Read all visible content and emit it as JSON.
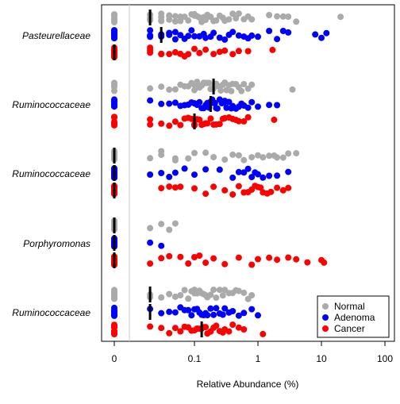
{
  "chart_data": {
    "type": "scatter",
    "xlabel": "Relative Abundance (%)",
    "ylabel": "",
    "x_scale": "log-with-zero",
    "xlim": [
      0,
      100
    ],
    "x_ticks": [
      {
        "value": 0,
        "label": "0"
      },
      {
        "value": 0.1,
        "label": "0.1"
      },
      {
        "value": 1,
        "label": "1"
      },
      {
        "value": 10,
        "label": "10"
      },
      {
        "value": 100,
        "label": "100"
      }
    ],
    "detection_limit": 0.015,
    "taxa": [
      "Pasteurellaceae",
      "Ruminococcaceae",
      "Ruminococcaceae",
      "Porphyromonas",
      "Ruminococcaceae"
    ],
    "legend": {
      "position": "bottom-right",
      "entries": [
        {
          "label": "Normal",
          "color": "#aaaaaa"
        },
        {
          "label": "Adenoma",
          "color": "#0000ff"
        },
        {
          "label": "Cancer",
          "color": "#ff0000"
        }
      ]
    },
    "series": [
      {
        "name": "Normal",
        "color": "#aaaaaa"
      },
      {
        "name": "Adenoma",
        "color": "#0000ff"
      },
      {
        "name": "Cancer",
        "color": "#ff0000"
      }
    ],
    "groups": [
      {
        "taxon": "Pasteurellaceae",
        "Normal": {
          "median": 0.02,
          "zero_points": 14,
          "points": [
            0.02,
            0.02,
            0.02,
            0.02,
            0.03,
            0.03,
            0.03,
            0.03,
            0.04,
            0.04,
            0.04,
            0.05,
            0.05,
            0.06,
            0.06,
            0.07,
            0.08,
            0.09,
            0.1,
            0.1,
            0.11,
            0.12,
            0.13,
            0.14,
            0.15,
            0.16,
            0.18,
            0.2,
            0.22,
            0.25,
            0.28,
            0.3,
            0.35,
            0.4,
            0.45,
            0.5,
            0.6,
            0.7,
            0.8,
            1.5,
            2,
            2.5,
            3,
            4,
            20
          ]
        },
        "Adenoma": {
          "median": 0.03,
          "zero_points": 14,
          "points": [
            0.02,
            0.02,
            0.02,
            0.03,
            0.03,
            0.03,
            0.04,
            0.04,
            0.05,
            0.05,
            0.06,
            0.07,
            0.08,
            0.09,
            0.1,
            0.12,
            0.14,
            0.15,
            0.18,
            0.2,
            0.25,
            0.3,
            0.35,
            0.4,
            0.5,
            0.6,
            0.7,
            0.8,
            1,
            1.5,
            2,
            2.5,
            3,
            8,
            10,
            12
          ]
        },
        "Cancer": {
          "median": 0.0,
          "zero_points": 14,
          "points": [
            0.02,
            0.02,
            0.02,
            0.03,
            0.03,
            0.04,
            0.05,
            0.06,
            0.07,
            0.08,
            0.1,
            0.12,
            0.15,
            0.2,
            0.25,
            0.3,
            0.4,
            0.5,
            0.7,
            1.7
          ]
        }
      },
      {
        "taxon": "Ruminococcaceae",
        "Normal": {
          "median": 0.2,
          "zero_points": 4,
          "points": [
            0.02,
            0.03,
            0.04,
            0.05,
            0.06,
            0.07,
            0.08,
            0.09,
            0.1,
            0.1,
            0.11,
            0.12,
            0.13,
            0.14,
            0.15,
            0.16,
            0.17,
            0.18,
            0.19,
            0.2,
            0.21,
            0.22,
            0.24,
            0.26,
            0.28,
            0.3,
            0.32,
            0.35,
            0.38,
            0.4,
            0.45,
            0.5,
            0.55,
            0.6,
            0.7,
            0.8,
            3.5
          ]
        },
        "Adenoma": {
          "median": 0.18,
          "zero_points": 10,
          "points": [
            0.02,
            0.03,
            0.04,
            0.05,
            0.06,
            0.07,
            0.08,
            0.09,
            0.1,
            0.1,
            0.11,
            0.12,
            0.13,
            0.14,
            0.15,
            0.16,
            0.17,
            0.18,
            0.19,
            0.2,
            0.21,
            0.22,
            0.23,
            0.25,
            0.27,
            0.29,
            0.3,
            0.32,
            0.35,
            0.38,
            0.4,
            0.45,
            0.5,
            0.55,
            0.6,
            0.7,
            0.8,
            1,
            1.5,
            2
          ]
        },
        "Cancer": {
          "median": 0.1,
          "zero_points": 6,
          "points": [
            0.02,
            0.02,
            0.03,
            0.04,
            0.05,
            0.06,
            0.07,
            0.08,
            0.09,
            0.1,
            0.1,
            0.11,
            0.12,
            0.13,
            0.14,
            0.15,
            0.16,
            0.18,
            0.2,
            0.22,
            0.25,
            0.28,
            0.3,
            0.35,
            0.4,
            0.45,
            0.5,
            0.6,
            0.7,
            1.8
          ]
        }
      },
      {
        "taxon": "Ruminococcaceae",
        "Normal": {
          "median": 0.0,
          "zero_points": 18,
          "points": [
            0.02,
            0.03,
            0.03,
            0.05,
            0.05,
            0.08,
            0.1,
            0.15,
            0.2,
            0.3,
            0.4,
            0.5,
            0.6,
            0.8,
            1,
            1.2,
            1.5,
            1.8,
            2,
            2.5,
            3,
            4
          ]
        },
        "Adenoma": {
          "median": 0.0,
          "zero_points": 20,
          "points": [
            0.02,
            0.03,
            0.04,
            0.05,
            0.07,
            0.1,
            0.15,
            0.25,
            0.4,
            0.5,
            0.6,
            0.7,
            0.8,
            0.9,
            1,
            1.2,
            1.5,
            2,
            3
          ]
        },
        "Cancer": {
          "median": 0.0,
          "zero_points": 16,
          "points": [
            0.03,
            0.04,
            0.05,
            0.06,
            0.1,
            0.15,
            0.2,
            0.3,
            0.4,
            0.5,
            0.6,
            0.7,
            0.8,
            0.9,
            1,
            1.1,
            1.2,
            1.4,
            1.6,
            2,
            2.5,
            3
          ]
        }
      },
      {
        "taxon": "Porphyromonas",
        "Normal": {
          "median": 0.0,
          "zero_points": 18,
          "points": [
            0.02,
            0.03,
            0.04,
            0.05
          ]
        },
        "Adenoma": {
          "median": 0.0,
          "zero_points": 18,
          "points": [
            0.02,
            0.03
          ]
        },
        "Cancer": {
          "median": 0.0,
          "zero_points": 18,
          "points": [
            0.02,
            0.03,
            0.04,
            0.06,
            0.08,
            0.1,
            0.12,
            0.15,
            0.2,
            0.3,
            0.5,
            0.8,
            1,
            1.5,
            2,
            3,
            4,
            6,
            10,
            11
          ]
        }
      },
      {
        "taxon": "Ruminococcaceae",
        "Normal": {
          "median": 0.02,
          "zero_points": 12,
          "points": [
            0.02,
            0.02,
            0.03,
            0.04,
            0.05,
            0.06,
            0.07,
            0.08,
            0.09,
            0.1,
            0.1,
            0.11,
            0.12,
            0.13,
            0.14,
            0.15,
            0.16,
            0.18,
            0.2,
            0.22,
            0.25,
            0.28,
            0.3,
            0.35,
            0.4,
            0.45,
            0.5,
            0.6,
            0.7,
            0.8
          ]
        },
        "Adenoma": {
          "median": 0.02,
          "zero_points": 12,
          "points": [
            0.02,
            0.03,
            0.04,
            0.05,
            0.06,
            0.07,
            0.08,
            0.09,
            0.1,
            0.11,
            0.12,
            0.13,
            0.14,
            0.15,
            0.16,
            0.18,
            0.2,
            0.22,
            0.25,
            0.28,
            0.3,
            0.35,
            0.4,
            0.5,
            0.6,
            0.8,
            1
          ]
        },
        "Cancer": {
          "median": 0.13,
          "zero_points": 12,
          "points": [
            0.02,
            0.03,
            0.04,
            0.05,
            0.06,
            0.07,
            0.08,
            0.09,
            0.1,
            0.11,
            0.12,
            0.13,
            0.14,
            0.15,
            0.16,
            0.18,
            0.2,
            0.22,
            0.25,
            0.28,
            0.3,
            0.35,
            0.4,
            0.5,
            0.6,
            1.2
          ]
        }
      }
    ]
  }
}
